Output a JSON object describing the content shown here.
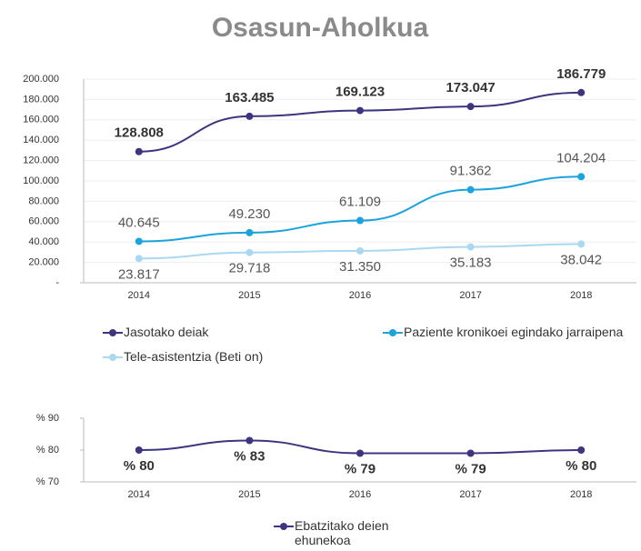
{
  "chart_data": [
    {
      "type": "line",
      "title": "Osasun-Aholkua",
      "categories": [
        "2014",
        "2015",
        "2016",
        "2017",
        "2018"
      ],
      "series": [
        {
          "name": "Jasotako deiak",
          "color": "#3d3580",
          "values": [
            128808,
            163485,
            169123,
            173047,
            186779
          ],
          "value_labels": [
            "128.808",
            "163.485",
            "169.123",
            "173.047",
            "186.779"
          ]
        },
        {
          "name": "Paziente kronikoei egindako jarraipena",
          "color": "#1ba3dd",
          "values": [
            40645,
            49230,
            61109,
            91362,
            104204
          ],
          "value_labels": [
            "40.645",
            "49.230",
            "61.109",
            "91.362",
            "104.204"
          ]
        },
        {
          "name": "Tele-asistentzia (Beti on)",
          "color": "#a9d9f1",
          "values": [
            23817,
            29718,
            31350,
            35183,
            38042
          ],
          "value_labels": [
            "23.817",
            "29.718",
            "31.350",
            "35.183",
            "38.042"
          ]
        }
      ],
      "ylim": [
        0,
        200000
      ],
      "yticks": [
        {
          "value": 0,
          "label": "-"
        },
        {
          "value": 20000,
          "label": "20.000"
        },
        {
          "value": 40000,
          "label": "40.000"
        },
        {
          "value": 60000,
          "label": "60.000"
        },
        {
          "value": 80000,
          "label": "80.000"
        },
        {
          "value": 100000,
          "label": "100.000"
        },
        {
          "value": 120000,
          "label": "120.000"
        },
        {
          "value": 140000,
          "label": "140.000"
        },
        {
          "value": 160000,
          "label": "160.000"
        },
        {
          "value": 180000,
          "label": "180.000"
        },
        {
          "value": 200000,
          "label": "200.000"
        }
      ],
      "grid": true
    },
    {
      "type": "line",
      "categories": [
        "2014",
        "2015",
        "2016",
        "2017",
        "2018"
      ],
      "series": [
        {
          "name": "Ebatzitako deien ehunekoa",
          "color": "#3d3580",
          "values": [
            80,
            83,
            79,
            79,
            80
          ],
          "value_labels": [
            "% 80",
            "% 83",
            "% 79",
            "% 79",
            "% 80"
          ]
        }
      ],
      "ylim": [
        70,
        90
      ],
      "yticks": [
        {
          "value": 70,
          "label": "% 70"
        },
        {
          "value": 80,
          "label": "% 80"
        },
        {
          "value": 90,
          "label": "% 90"
        }
      ],
      "grid": false
    }
  ]
}
